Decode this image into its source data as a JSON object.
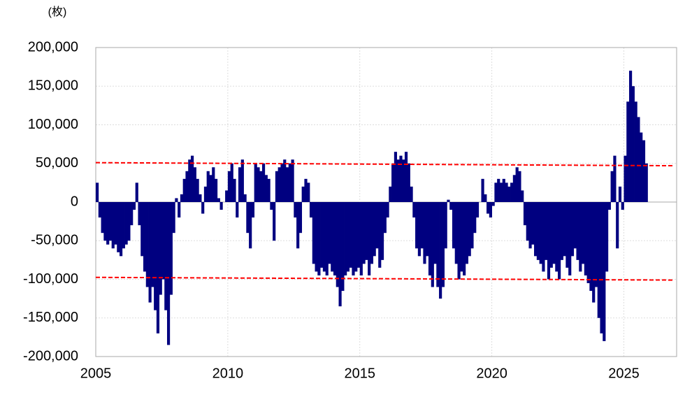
{
  "chart_data": {
    "type": "bar",
    "unit_label": "(枚)",
    "color": "#000080",
    "grid": true,
    "negative_tick_color": "#ff0000",
    "xlim": [
      2005,
      2027
    ],
    "xticks": [
      2005,
      2010,
      2015,
      2020,
      2025
    ],
    "ylim": [
      -200000,
      200000
    ],
    "yticks": [
      {
        "value": 200000,
        "label": "200,000"
      },
      {
        "value": 150000,
        "label": "150,000"
      },
      {
        "value": 100000,
        "label": "100,000"
      },
      {
        "value": 50000,
        "label": "50,000"
      },
      0,
      {
        "value": -50000,
        "label": "-50,000"
      },
      {
        "value": -100000,
        "label": "-100,000"
      },
      {
        "value": -150000,
        "label": "-150,000"
      },
      {
        "value": -200000,
        "label": "-200,000"
      }
    ],
    "bar_width": 0.1,
    "x": [
      2005.0,
      2005.1,
      2005.2,
      2005.3,
      2005.4,
      2005.5,
      2005.6,
      2005.7,
      2005.8,
      2005.9,
      2006.0,
      2006.1,
      2006.2,
      2006.3,
      2006.4,
      2006.5,
      2006.6,
      2006.7,
      2006.8,
      2006.9,
      2007.0,
      2007.1,
      2007.2,
      2007.3,
      2007.4,
      2007.5,
      2007.6,
      2007.7,
      2007.8,
      2007.9,
      2008.0,
      2008.1,
      2008.2,
      2008.3,
      2008.4,
      2008.5,
      2008.6,
      2008.7,
      2008.8,
      2008.9,
      2009.0,
      2009.1,
      2009.2,
      2009.3,
      2009.4,
      2009.5,
      2009.6,
      2009.7,
      2009.8,
      2009.9,
      2010.0,
      2010.1,
      2010.2,
      2010.3,
      2010.4,
      2010.5,
      2010.6,
      2010.7,
      2010.8,
      2010.9,
      2011.0,
      2011.1,
      2011.2,
      2011.3,
      2011.4,
      2011.5,
      2011.6,
      2011.7,
      2011.8,
      2011.9,
      2012.0,
      2012.1,
      2012.2,
      2012.3,
      2012.4,
      2012.5,
      2012.6,
      2012.7,
      2012.8,
      2012.9,
      2013.0,
      2013.1,
      2013.2,
      2013.3,
      2013.4,
      2013.5,
      2013.6,
      2013.7,
      2013.8,
      2013.9,
      2014.0,
      2014.1,
      2014.2,
      2014.3,
      2014.4,
      2014.5,
      2014.6,
      2014.7,
      2014.8,
      2014.9,
      2015.0,
      2015.1,
      2015.2,
      2015.3,
      2015.4,
      2015.5,
      2015.6,
      2015.7,
      2015.8,
      2015.9,
      2016.0,
      2016.1,
      2016.2,
      2016.3,
      2016.4,
      2016.5,
      2016.6,
      2016.7,
      2016.8,
      2016.9,
      2017.0,
      2017.1,
      2017.2,
      2017.3,
      2017.4,
      2017.5,
      2017.6,
      2017.7,
      2017.8,
      2017.9,
      2018.0,
      2018.1,
      2018.2,
      2018.3,
      2018.4,
      2018.5,
      2018.6,
      2018.7,
      2018.8,
      2018.9,
      2019.0,
      2019.1,
      2019.2,
      2019.3,
      2019.4,
      2019.5,
      2019.6,
      2019.7,
      2019.8,
      2019.9,
      2020.0,
      2020.1,
      2020.2,
      2020.3,
      2020.4,
      2020.5,
      2020.6,
      2020.7,
      2020.8,
      2020.9,
      2021.0,
      2021.1,
      2021.2,
      2021.3,
      2021.4,
      2021.5,
      2021.6,
      2021.7,
      2021.8,
      2021.9,
      2022.0,
      2022.1,
      2022.2,
      2022.3,
      2022.4,
      2022.5,
      2022.6,
      2022.7,
      2022.8,
      2022.9,
      2023.0,
      2023.1,
      2023.2,
      2023.3,
      2023.4,
      2023.5,
      2023.6,
      2023.7,
      2023.8,
      2023.9,
      2024.0,
      2024.1,
      2024.2,
      2024.3,
      2024.4,
      2024.5,
      2024.6,
      2024.7,
      2024.8,
      2024.9,
      2025.0,
      2025.1,
      2025.2,
      2025.3,
      2025.4,
      2025.5,
      2025.6,
      2025.7,
      2025.8
    ],
    "values": [
      25000,
      -20000,
      -40000,
      -50000,
      -55000,
      -50000,
      -60000,
      -55000,
      -65000,
      -70000,
      -60000,
      -55000,
      -50000,
      -30000,
      -10000,
      25000,
      -30000,
      -70000,
      -90000,
      -110000,
      -130000,
      -110000,
      -140000,
      -170000,
      -120000,
      -100000,
      -140000,
      -185000,
      -120000,
      -40000,
      5000,
      -20000,
      10000,
      30000,
      40000,
      55000,
      60000,
      45000,
      30000,
      10000,
      -15000,
      20000,
      40000,
      35000,
      45000,
      30000,
      5000,
      -10000,
      0,
      15000,
      40000,
      50000,
      30000,
      -20000,
      45000,
      55000,
      10000,
      -40000,
      -60000,
      -20000,
      50000,
      45000,
      40000,
      50000,
      35000,
      30000,
      -10000,
      -50000,
      40000,
      45000,
      50000,
      55000,
      45000,
      50000,
      55000,
      -20000,
      -60000,
      -40000,
      20000,
      30000,
      25000,
      -20000,
      -80000,
      -90000,
      -95000,
      -85000,
      -90000,
      -95000,
      -80000,
      -90000,
      -95000,
      -110000,
      -135000,
      -115000,
      -95000,
      -90000,
      -85000,
      -95000,
      -90000,
      -85000,
      -95000,
      -80000,
      -75000,
      -95000,
      -80000,
      -70000,
      -60000,
      -85000,
      -75000,
      -40000,
      -20000,
      20000,
      50000,
      65000,
      55000,
      60000,
      55000,
      65000,
      50000,
      20000,
      -20000,
      -60000,
      -70000,
      -60000,
      -80000,
      -70000,
      -95000,
      -110000,
      -80000,
      -110000,
      -125000,
      -110000,
      -60000,
      3000,
      -10000,
      -60000,
      -80000,
      -100000,
      -90000,
      -95000,
      -80000,
      -70000,
      -60000,
      -40000,
      -20000,
      0,
      30000,
      10000,
      -15000,
      -20000,
      -5000,
      25000,
      30000,
      25000,
      30000,
      25000,
      20000,
      25000,
      35000,
      45000,
      40000,
      15000,
      -30000,
      -50000,
      -60000,
      -55000,
      -70000,
      -75000,
      -80000,
      -90000,
      -75000,
      -100000,
      -85000,
      -80000,
      -90000,
      -100000,
      -75000,
      -70000,
      -85000,
      -95000,
      -70000,
      -60000,
      -75000,
      -90000,
      -80000,
      -95000,
      -105000,
      -115000,
      -130000,
      -110000,
      -150000,
      -170000,
      -180000,
      -90000,
      -10000,
      40000,
      60000,
      -60000,
      20000,
      -10000,
      60000,
      130000,
      170000,
      150000,
      130000,
      110000,
      90000,
      80000,
      50000
    ],
    "reference_lines": [
      {
        "color": "#ff0000",
        "x": [
          2005,
          2026.9
        ],
        "y": [
          51000,
          47000
        ]
      },
      {
        "color": "#ff0000",
        "x": [
          2005,
          2026.9
        ],
        "y": [
          -97500,
          -101000
        ]
      }
    ]
  }
}
